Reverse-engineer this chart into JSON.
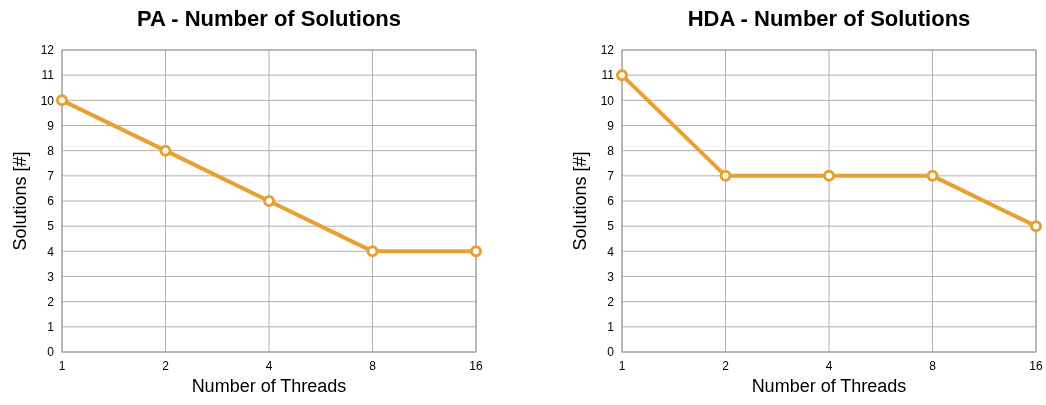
{
  "chart_data": [
    {
      "type": "line",
      "title": "PA - Number of Solutions",
      "xlabel": "Number of Threads",
      "ylabel": "Solutions [#]",
      "categories": [
        "1",
        "2",
        "4",
        "8",
        "16"
      ],
      "series": [
        {
          "color": "#e8a033",
          "values": [
            10,
            8,
            6,
            4,
            4
          ]
        }
      ],
      "ylim": [
        0,
        12
      ],
      "yticks": [
        0,
        1,
        2,
        3,
        4,
        5,
        6,
        7,
        8,
        9,
        10,
        11,
        12
      ],
      "grid": true,
      "marker": "circle",
      "line_style": "solid"
    },
    {
      "type": "line",
      "title": "HDA - Number of Solutions",
      "xlabel": "Number of Threads",
      "ylabel": "Solutions [#]",
      "categories": [
        "1",
        "2",
        "4",
        "8",
        "16"
      ],
      "series": [
        {
          "color": "#e8a033",
          "values": [
            11,
            7,
            7,
            7,
            5
          ]
        }
      ],
      "ylim": [
        0,
        12
      ],
      "yticks": [
        0,
        1,
        2,
        3,
        4,
        5,
        6,
        7,
        8,
        9,
        10,
        11,
        12
      ],
      "grid": true,
      "marker": "circle",
      "line_style": "solid"
    }
  ]
}
